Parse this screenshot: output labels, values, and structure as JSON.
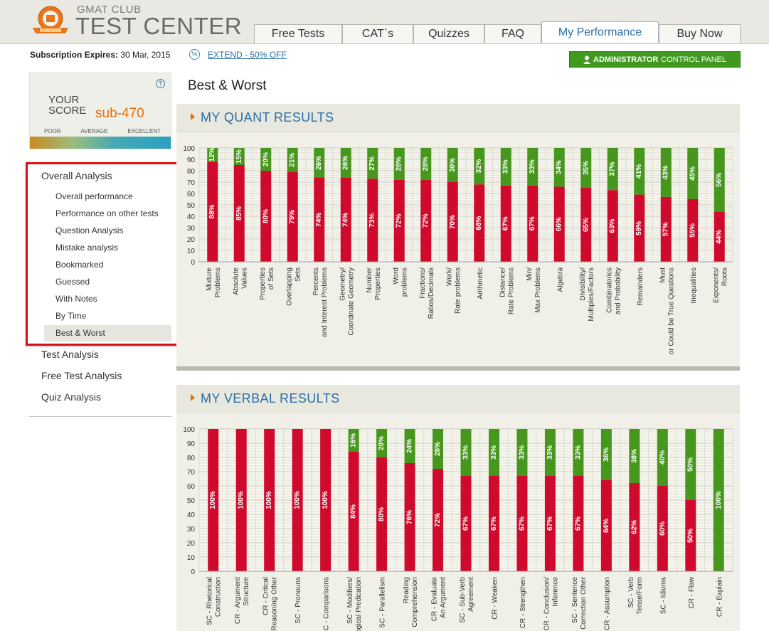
{
  "header": {
    "logo_small": "GMAT CLUB",
    "logo_big": "TEST CENTER",
    "tabs": [
      {
        "label": "Free Tests"
      },
      {
        "label": "CAT`s"
      },
      {
        "label": "Quizzes"
      },
      {
        "label": "FAQ"
      },
      {
        "label": "My Performance"
      },
      {
        "label": "Buy Now"
      }
    ],
    "active_tab": "My Performance"
  },
  "subbar": {
    "expire_label": "Subscription Expires:",
    "expire_date": "30 Mar, 2015",
    "extend_icon": "%",
    "extend_link": "EXTEND - 50% OFF",
    "admin_bold": "ADMINISTRATOR",
    "admin_rest": "CONTROL PANEL"
  },
  "score": {
    "label_line1": "YOUR",
    "label_line2": "SCORE",
    "value": "sub-470",
    "scale": [
      "POOR",
      "AVERAGE",
      "EXCELLENT"
    ],
    "help": "?"
  },
  "nav": {
    "overall": "Overall Analysis",
    "items": [
      "Overall performance",
      "Performance on other tests",
      "Question Analysis",
      "Mistake analysis",
      "Bookmarked",
      "Guessed",
      "With Notes",
      "By Time",
      "Best & Worst"
    ],
    "active": "Best & Worst",
    "other": [
      "Test Analysis",
      "Free Test Analysis",
      "Quiz Analysis"
    ]
  },
  "page": {
    "title": "Best & Worst"
  },
  "colors": {
    "accent": "#2a6fa8",
    "incorrect": "#cf0a2c",
    "correct": "#47961e",
    "orange": "#e07010",
    "admin_green": "#3f9a1f"
  },
  "chart_data": [
    {
      "type": "bar",
      "title": "MY QUANT RESULTS",
      "stacked": true,
      "ylim": [
        0,
        100
      ],
      "yticks": [
        0,
        10,
        20,
        30,
        40,
        50,
        60,
        70,
        80,
        90,
        100
      ],
      "grid": true,
      "categories": [
        [
          "Mixture",
          "Problems"
        ],
        [
          "Absolute",
          "Values"
        ],
        [
          "Properties",
          "of Sets"
        ],
        [
          "Overlapping",
          "Sets"
        ],
        [
          "Percents",
          "and Interest Problems"
        ],
        [
          "Geometry/",
          "Coordinate Geometry"
        ],
        [
          "Number",
          "Properties"
        ],
        [
          "Word",
          "problems"
        ],
        [
          "Fractions/",
          "Ratios/Decimals"
        ],
        [
          "Work/",
          "Rate problems"
        ],
        [
          "Arithmetic"
        ],
        [
          "Distance/",
          "Rate Problems"
        ],
        [
          "Min/",
          "Max Problems"
        ],
        [
          "Algebra"
        ],
        [
          "Divisibility/",
          "Multiples/Factors"
        ],
        [
          "Combinatorics",
          "and Probability"
        ],
        [
          "Remainders"
        ],
        [
          "Must",
          "or Could be True Questions"
        ],
        [
          "Inequalities"
        ],
        [
          "Exponents/",
          "Roots"
        ]
      ],
      "series": [
        {
          "values": [
            88,
            85,
            80,
            79,
            74,
            74,
            73,
            72,
            72,
            70,
            68,
            67,
            67,
            66,
            65,
            63,
            59,
            57,
            55,
            44
          ]
        },
        {
          "values": [
            12,
            15,
            20,
            21,
            26,
            26,
            27,
            28,
            28,
            30,
            32,
            33,
            33,
            34,
            35,
            37,
            41,
            43,
            45,
            56
          ]
        }
      ]
    },
    {
      "type": "bar",
      "title": "MY VERBAL RESULTS",
      "stacked": true,
      "ylim": [
        0,
        100
      ],
      "yticks": [
        0,
        10,
        20,
        30,
        40,
        50,
        60,
        70,
        80,
        90,
        100
      ],
      "grid": true,
      "categories": [
        [
          "SC - Rhetorical",
          "Construction"
        ],
        [
          "CR - Argument",
          "Structure"
        ],
        [
          "CR - Critical",
          "Reasoning Other"
        ],
        [
          "SC - Pronouns"
        ],
        [
          "SC - Comparisons"
        ],
        [
          "SC - Modifiers/",
          "Logical Predication"
        ],
        [
          "SC - Parallelism"
        ],
        [
          "Reading",
          "Comprehension"
        ],
        [
          "CR - Evaluate",
          "An Argument"
        ],
        [
          "SC - Sub-Verb",
          "Agreement"
        ],
        [
          "CR - Weaken"
        ],
        [
          "CR - Strengthen"
        ],
        [
          "CR - Conclusion/",
          "Inference"
        ],
        [
          "SC - Sentence",
          "Correction Other"
        ],
        [
          "CR - Assumption"
        ],
        [
          "SC - Verb",
          "Tense/Form"
        ],
        [
          "SC - Idioms"
        ],
        [
          "CR - Flaw"
        ],
        [
          "CR - Explain"
        ]
      ],
      "series": [
        {
          "values": [
            100,
            100,
            100,
            100,
            100,
            84,
            80,
            76,
            72,
            67,
            67,
            67,
            67,
            67,
            64,
            62,
            60,
            50,
            0
          ]
        },
        {
          "values": [
            0,
            0,
            0,
            0,
            0,
            16,
            20,
            24,
            28,
            33,
            33,
            33,
            33,
            33,
            36,
            38,
            40,
            50,
            100
          ]
        }
      ]
    }
  ]
}
